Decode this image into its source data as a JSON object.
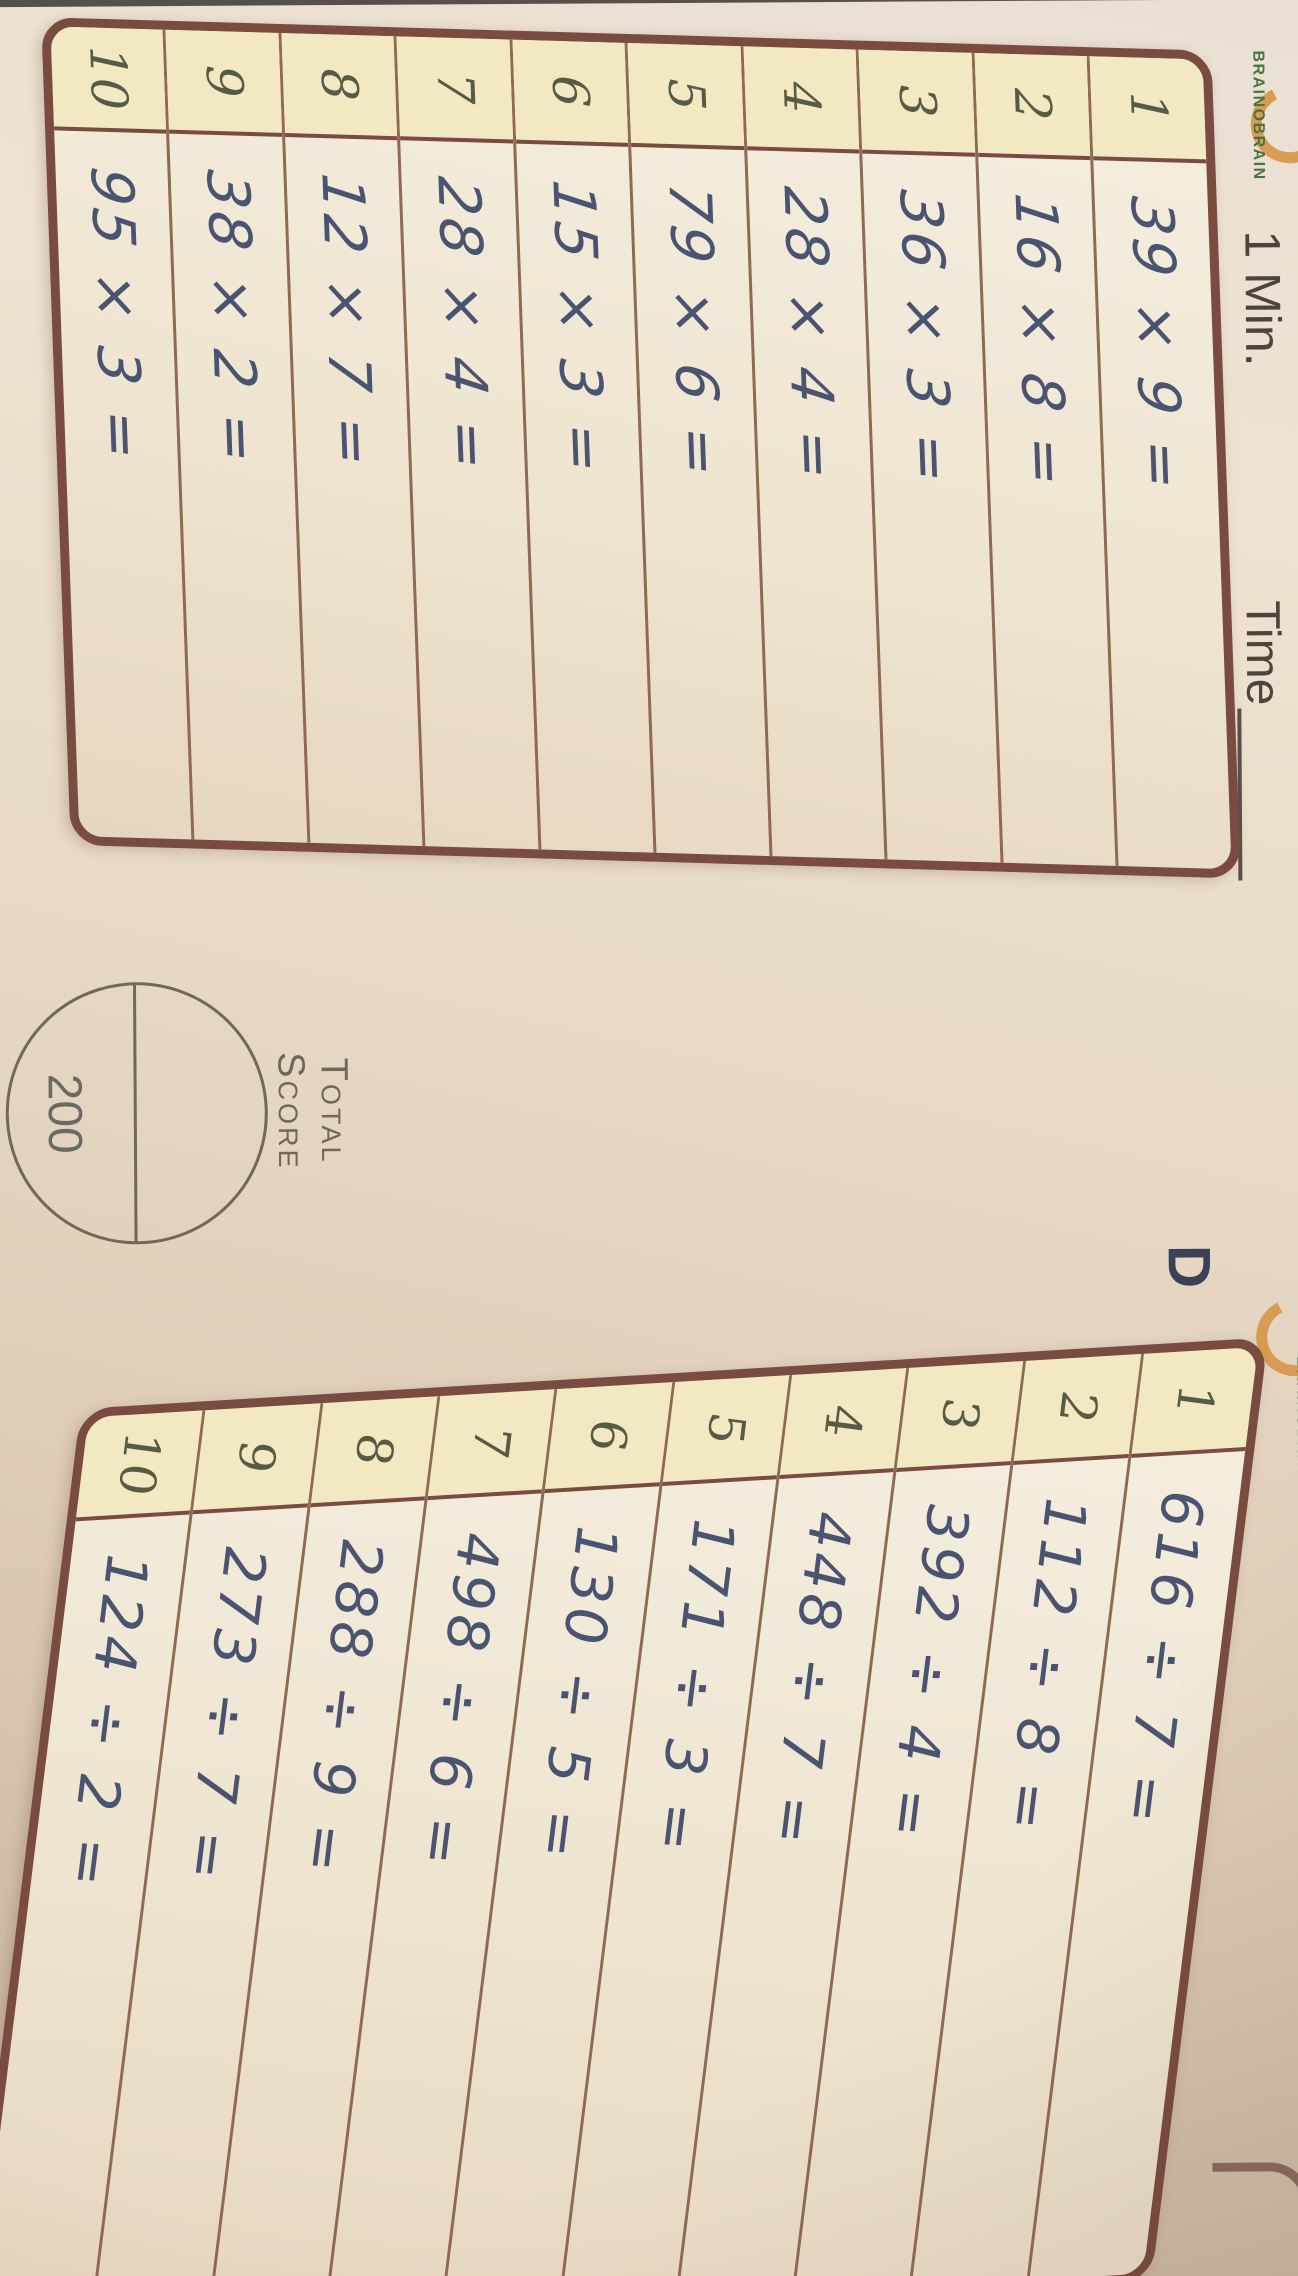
{
  "page": {
    "brand": "BRAINOBRAIN",
    "duration_label": "1 Min.",
    "time_label": "Time",
    "section_label": "D",
    "score": {
      "label_line1": "Total",
      "label_line2": "Score",
      "max_value": "200"
    }
  },
  "multiplication_table": {
    "rows": [
      {
        "num": "1",
        "expr": "39 × 9 ="
      },
      {
        "num": "2",
        "expr": "16 × 8 ="
      },
      {
        "num": "3",
        "expr": "36 × 3 ="
      },
      {
        "num": "4",
        "expr": "28 × 4 ="
      },
      {
        "num": "5",
        "expr": "79 × 6 ="
      },
      {
        "num": "6",
        "expr": "15 × 3 ="
      },
      {
        "num": "7",
        "expr": "28 × 4 ="
      },
      {
        "num": "8",
        "expr": "12 × 7 ="
      },
      {
        "num": "9",
        "expr": "38 × 2 ="
      },
      {
        "num": "10",
        "expr": "95 × 3 ="
      }
    ]
  },
  "division_table": {
    "rows": [
      {
        "num": "1",
        "expr": "616 ÷ 7 ="
      },
      {
        "num": "2",
        "expr": "112 ÷ 8 ="
      },
      {
        "num": "3",
        "expr": "392 ÷ 4 ="
      },
      {
        "num": "4",
        "expr": "448 ÷ 7 ="
      },
      {
        "num": "5",
        "expr": "171 ÷ 3 ="
      },
      {
        "num": "6",
        "expr": "130 ÷ 5 ="
      },
      {
        "num": "7",
        "expr": "498 ÷ 6 ="
      },
      {
        "num": "8",
        "expr": "288 ÷ 9 ="
      },
      {
        "num": "9",
        "expr": "273 ÷ 7 ="
      },
      {
        "num": "10",
        "expr": "124 ÷ 2 ="
      }
    ]
  },
  "colors": {
    "table_border": "#7a4b40",
    "row_line": "#8f6a52",
    "header_cell_bg": "#f2e9c2",
    "handwriting_ink": "#4a5370",
    "brand_green": "#4a7340",
    "logo_orange": "#d6913f",
    "page_light": "#eee2d2",
    "page_dark": "#c0ad96"
  }
}
